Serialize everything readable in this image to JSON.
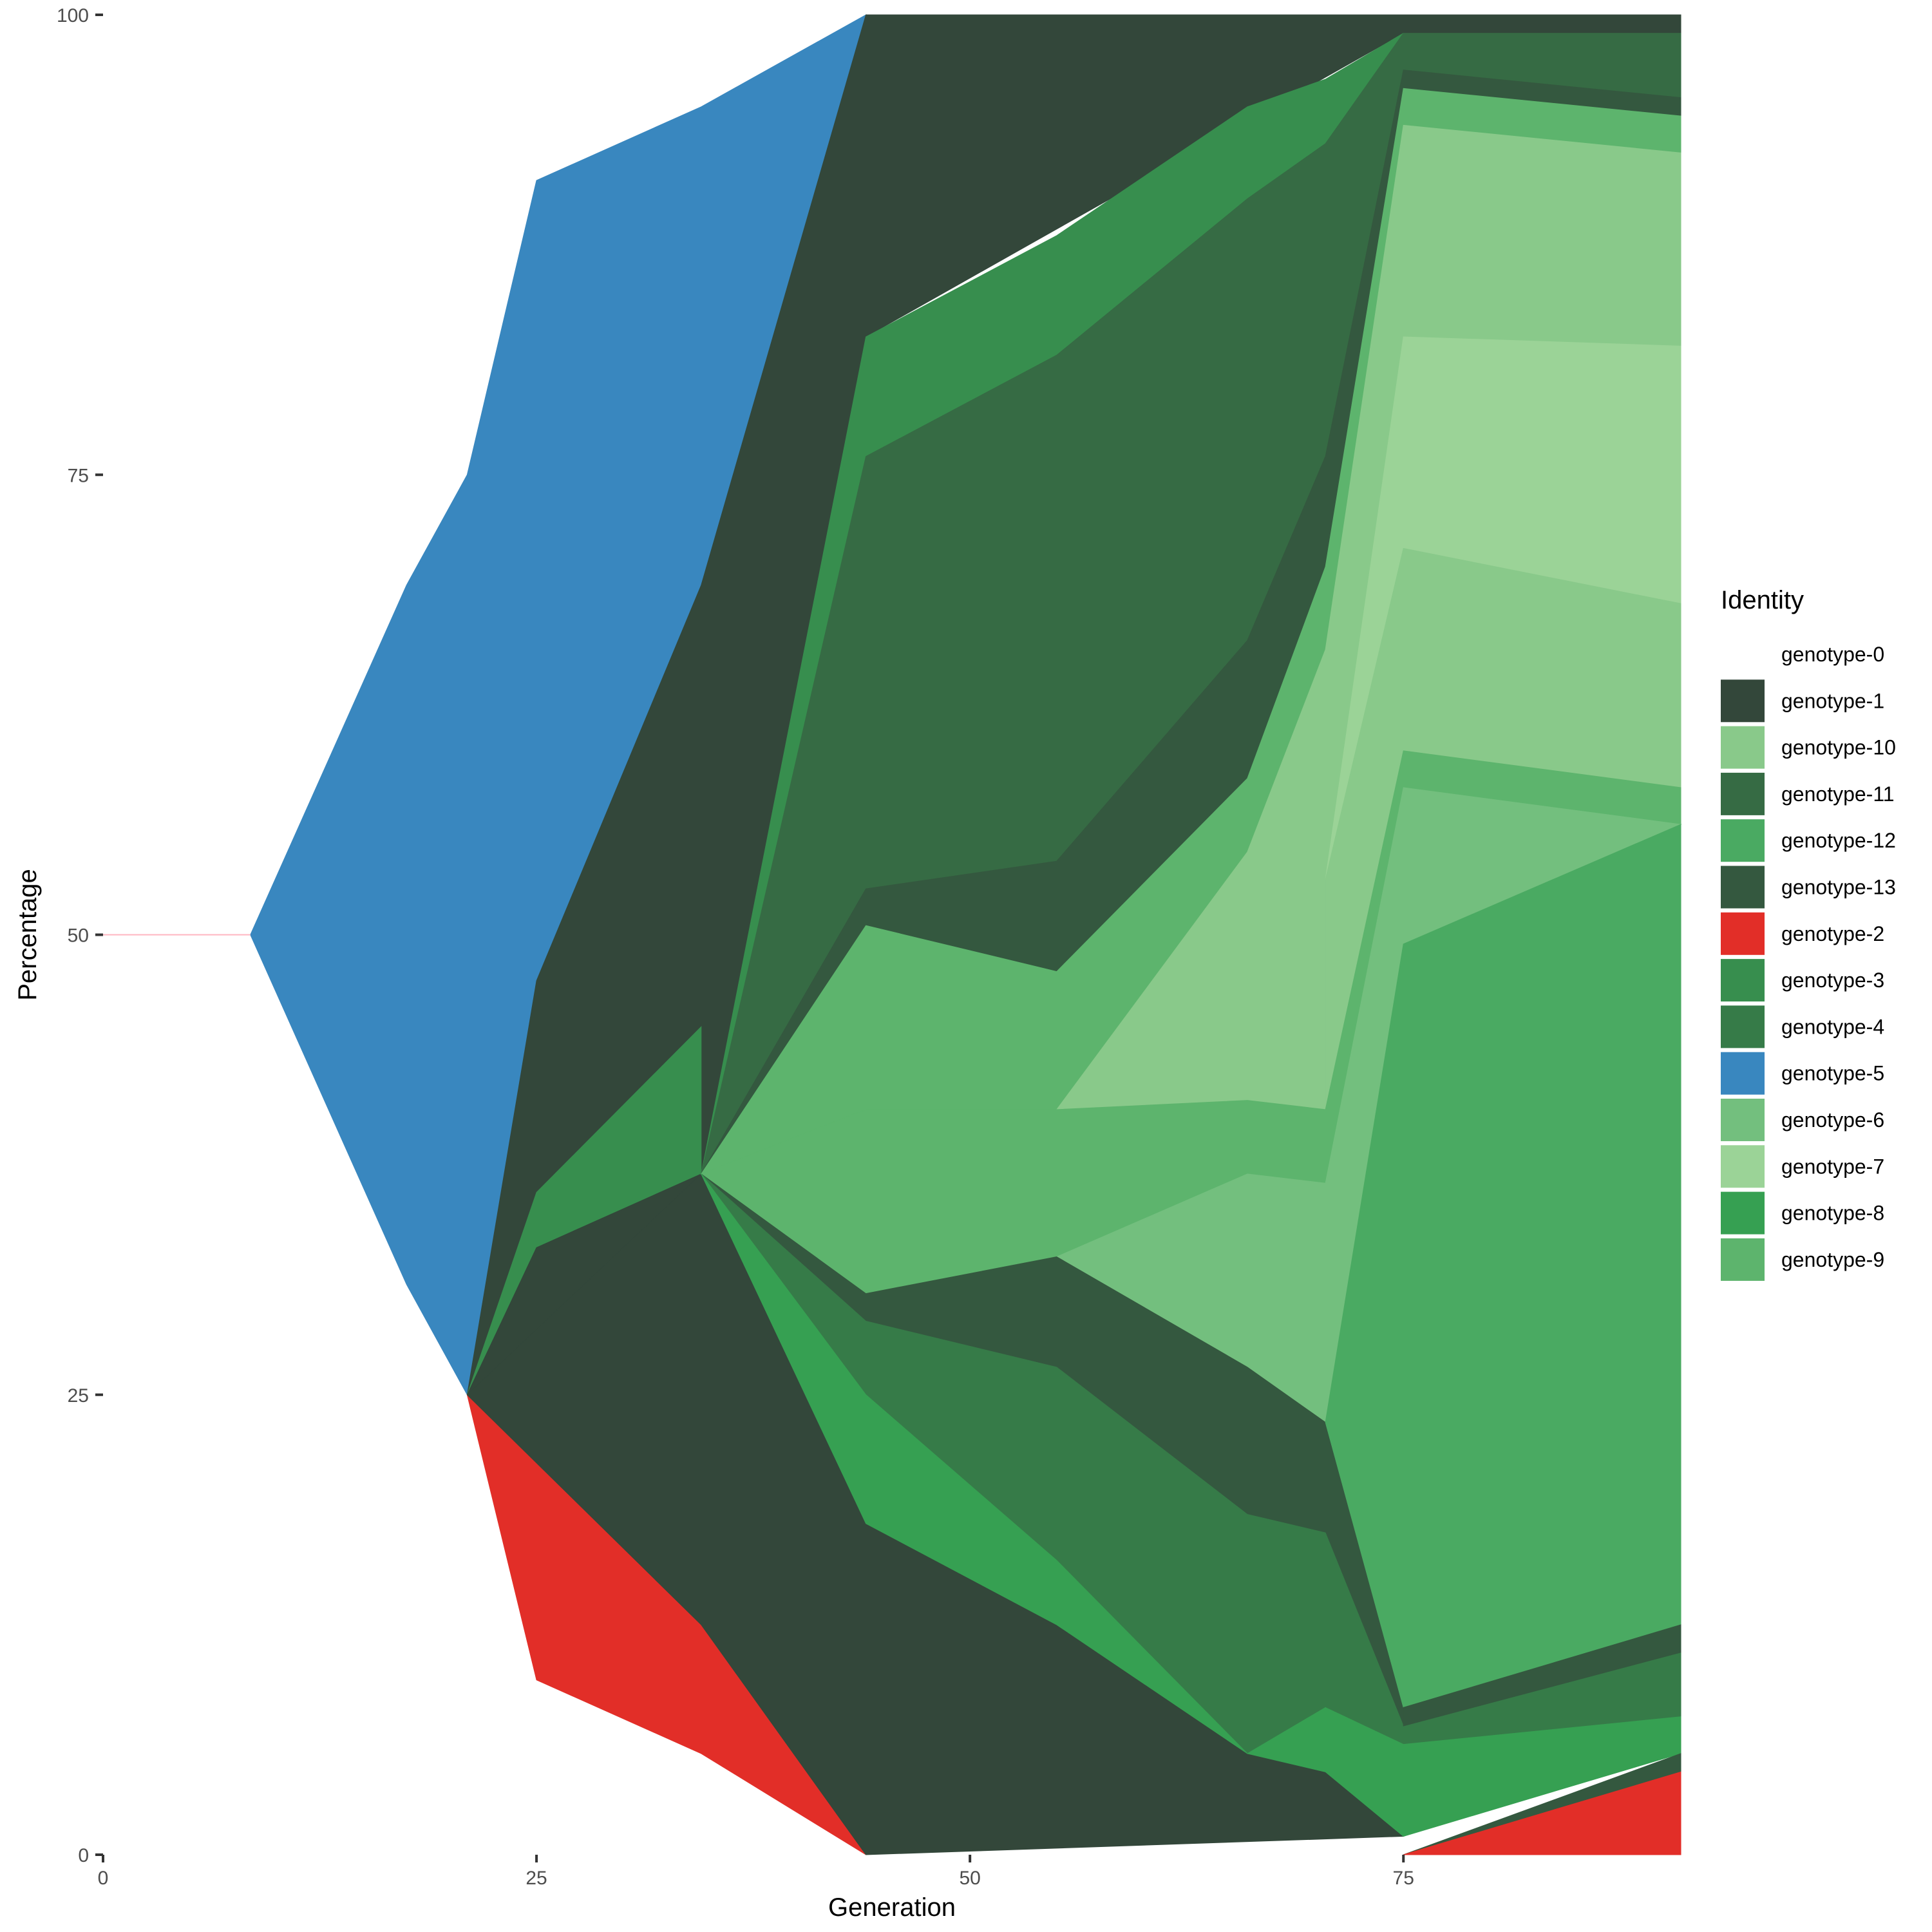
{
  "chart_data": {
    "type": "area",
    "xlabel": "Generation",
    "ylabel": "Percentage",
    "xlim": [
      0,
      91
    ],
    "ylim": [
      0,
      100
    ],
    "x_ticks": [
      0,
      25,
      50,
      75
    ],
    "y_ticks": [
      0,
      25,
      50,
      75,
      100
    ],
    "grid": false,
    "legend": {
      "title": "Identity",
      "position": "right",
      "entries": [
        {
          "name": "genotype-0",
          "color": "#ffffff"
        },
        {
          "name": "genotype-1",
          "color": "#33473a"
        },
        {
          "name": "genotype-10",
          "color": "#89c98a"
        },
        {
          "name": "genotype-11",
          "color": "#366b44"
        },
        {
          "name": "genotype-12",
          "color": "#4aaa62"
        },
        {
          "name": "genotype-13",
          "color": "#34583f"
        },
        {
          "name": "genotype-2",
          "color": "#e22e28"
        },
        {
          "name": "genotype-3",
          "color": "#378e4e"
        },
        {
          "name": "genotype-4",
          "color": "#367b48"
        },
        {
          "name": "genotype-5",
          "color": "#3987bf"
        },
        {
          "name": "genotype-6",
          "color": "#73bf7e"
        },
        {
          "name": "genotype-7",
          "color": "#9bd397"
        },
        {
          "name": "genotype-8",
          "color": "#36a052"
        },
        {
          "name": "genotype-9",
          "color": "#5db46d"
        }
      ]
    },
    "regions": [
      {
        "series": "genotype-5",
        "color": "#3987bf",
        "points": [
          [
            8.5,
            50
          ],
          [
            17.5,
            69
          ],
          [
            21,
            75
          ],
          [
            25,
            91
          ],
          [
            34.5,
            95
          ],
          [
            44,
            100
          ],
          [
            34.5,
            69
          ],
          [
            25,
            47.5
          ],
          [
            21,
            25
          ],
          [
            17.5,
            31
          ],
          [
            8.5,
            50
          ]
        ]
      },
      {
        "series": "genotype-2",
        "color": "#e22e28",
        "points": [
          [
            21,
            25
          ],
          [
            34.5,
            12.5
          ],
          [
            44,
            0
          ],
          [
            34.5,
            5.5
          ],
          [
            25,
            9.5
          ],
          [
            21,
            25
          ]
        ]
      },
      {
        "series": "genotype-1",
        "color": "#33473a",
        "points": [
          [
            21,
            25
          ],
          [
            25,
            47.5
          ],
          [
            34.5,
            69
          ],
          [
            44,
            100
          ],
          [
            91,
            100
          ],
          [
            91,
            99
          ],
          [
            75,
            99
          ],
          [
            44,
            82.5
          ],
          [
            34.5,
            37
          ],
          [
            44,
            18
          ],
          [
            55,
            12.5
          ],
          [
            66,
            5.5
          ],
          [
            70.5,
            4.5
          ],
          [
            75,
            1
          ],
          [
            44,
            0
          ],
          [
            34.5,
            12.5
          ],
          [
            21,
            25
          ]
        ]
      },
      {
        "series": "genotype-3",
        "color": "#378e4e",
        "points": [
          [
            21,
            25
          ],
          [
            25,
            36
          ],
          [
            34.5,
            45
          ],
          [
            34.5,
            37
          ],
          [
            25,
            33
          ],
          [
            21,
            25
          ]
        ]
      },
      {
        "series": "genotype-1",
        "color": "#33473a",
        "points": [
          [
            21,
            25
          ],
          [
            25,
            33
          ],
          [
            34.5,
            37
          ],
          [
            21,
            25
          ]
        ]
      },
      {
        "series": "genotype-3",
        "color": "#378e4e",
        "points": [
          [
            34.5,
            37
          ],
          [
            44,
            82.5
          ],
          [
            55,
            88
          ],
          [
            66,
            95
          ],
          [
            70.5,
            96.5
          ],
          [
            75,
            99
          ],
          [
            70.5,
            93
          ],
          [
            66,
            90
          ],
          [
            55,
            81.5
          ],
          [
            44,
            76
          ],
          [
            34.5,
            37
          ]
        ]
      },
      {
        "series": "genotype-11",
        "color": "#366b44",
        "points": [
          [
            34.5,
            37
          ],
          [
            44,
            76
          ],
          [
            55,
            81.5
          ],
          [
            66,
            90
          ],
          [
            70.5,
            93
          ],
          [
            75,
            99
          ],
          [
            91,
            99
          ],
          [
            91,
            95.5
          ],
          [
            75,
            97
          ],
          [
            70.5,
            76
          ],
          [
            66,
            66
          ],
          [
            55,
            54
          ],
          [
            44,
            52.5
          ],
          [
            34.5,
            37
          ]
        ]
      },
      {
        "series": "genotype-13",
        "color": "#34583f",
        "points": [
          [
            34.5,
            37
          ],
          [
            44,
            52.5
          ],
          [
            55,
            54
          ],
          [
            66,
            66
          ],
          [
            70.5,
            76
          ],
          [
            75,
            97
          ],
          [
            91,
            95.5
          ],
          [
            91,
            94.5
          ],
          [
            75,
            96
          ],
          [
            70.5,
            70
          ],
          [
            66,
            58.5
          ],
          [
            55,
            48
          ],
          [
            44,
            50.5
          ],
          [
            34.5,
            37
          ]
        ]
      },
      {
        "series": "genotype-9",
        "color": "#5db46d",
        "points": [
          [
            34.5,
            37
          ],
          [
            44,
            50.5
          ],
          [
            55,
            48
          ],
          [
            66,
            58.5
          ],
          [
            70.5,
            70
          ],
          [
            75,
            96
          ],
          [
            91,
            94.5
          ],
          [
            91,
            92.5
          ],
          [
            75,
            94
          ],
          [
            70.5,
            65.5
          ],
          [
            66,
            54.5
          ],
          [
            55,
            40.5
          ],
          [
            44,
            40.5
          ],
          [
            34.5,
            37
          ]
        ]
      },
      {
        "series": "genotype-10",
        "color": "#89c98a",
        "points": [
          [
            55,
            40.5
          ],
          [
            66,
            54.5
          ],
          [
            70.5,
            65.5
          ],
          [
            75,
            94
          ],
          [
            91,
            92.5
          ],
          [
            91,
            82
          ],
          [
            75,
            82.5
          ],
          [
            70.5,
            53
          ],
          [
            70.5,
            40.5
          ],
          [
            66,
            41
          ],
          [
            55,
            40.5
          ]
        ]
      },
      {
        "series": "genotype-7",
        "color": "#9bd397",
        "points": [
          [
            70.5,
            53
          ],
          [
            75,
            82.5
          ],
          [
            91,
            82
          ],
          [
            91,
            68
          ],
          [
            75,
            71
          ],
          [
            70.5,
            53
          ]
        ]
      },
      {
        "series": "genotype-10",
        "color": "#89c98a",
        "points": [
          [
            70.5,
            53
          ],
          [
            75,
            71
          ],
          [
            91,
            68
          ],
          [
            91,
            58
          ],
          [
            75,
            60
          ],
          [
            70.5,
            40.5
          ],
          [
            70.5,
            53
          ]
        ]
      },
      {
        "series": "genotype-9",
        "color": "#5db46d",
        "points": [
          [
            34.5,
            37
          ],
          [
            44,
            40.5
          ],
          [
            55,
            40.5
          ],
          [
            66,
            41
          ],
          [
            70.5,
            40.5
          ],
          [
            75,
            60
          ],
          [
            91,
            58
          ],
          [
            91,
            56
          ],
          [
            75,
            58
          ],
          [
            70.5,
            36.5
          ],
          [
            66,
            37
          ],
          [
            55,
            32.5
          ],
          [
            44,
            30.5
          ],
          [
            34.5,
            37
          ]
        ]
      },
      {
        "series": "genotype-6",
        "color": "#73bf7e",
        "points": [
          [
            55,
            32.5
          ],
          [
            66,
            37
          ],
          [
            70.5,
            36.5
          ],
          [
            75,
            58
          ],
          [
            91,
            56
          ],
          [
            91,
            56
          ],
          [
            75,
            49.5
          ],
          [
            70.5,
            23.5
          ],
          [
            66,
            26.5
          ],
          [
            55,
            32.5
          ]
        ]
      },
      {
        "series": "genotype-13",
        "color": "#34583f",
        "points": [
          [
            34.5,
            37
          ],
          [
            44,
            30.5
          ],
          [
            55,
            32.5
          ],
          [
            66,
            26.5
          ],
          [
            70.5,
            23.5
          ],
          [
            75,
            8
          ],
          [
            75,
            7
          ],
          [
            70.5,
            17.5
          ],
          [
            66,
            18.5
          ],
          [
            55,
            26.5
          ],
          [
            44,
            29
          ],
          [
            34.5,
            37
          ]
        ]
      },
      {
        "series": "genotype-12",
        "color": "#4aaa62",
        "points": [
          [
            70.5,
            23.5
          ],
          [
            75,
            49.5
          ],
          [
            91,
            56
          ],
          [
            91,
            12.5
          ],
          [
            75,
            8
          ],
          [
            70.5,
            23.5
          ]
        ]
      },
      {
        "series": "genotype-4",
        "color": "#367b48",
        "points": [
          [
            34.5,
            37
          ],
          [
            44,
            29
          ],
          [
            55,
            26.5
          ],
          [
            66,
            18.5
          ],
          [
            70.5,
            17.5
          ],
          [
            75,
            7
          ],
          [
            91,
            11
          ],
          [
            91,
            7.5
          ],
          [
            75,
            6
          ],
          [
            70.5,
            8
          ],
          [
            66,
            5.5
          ],
          [
            55,
            16
          ],
          [
            44,
            25
          ],
          [
            34.5,
            37
          ]
        ]
      },
      {
        "series": "genotype-13",
        "color": "#34583f",
        "points": [
          [
            75,
            8
          ],
          [
            91,
            12.5
          ],
          [
            91,
            11
          ],
          [
            75,
            7
          ],
          [
            75,
            8
          ]
        ]
      },
      {
        "series": "genotype-8",
        "color": "#36a052",
        "points": [
          [
            34.5,
            37
          ],
          [
            44,
            25
          ],
          [
            55,
            16
          ],
          [
            66,
            5.5
          ],
          [
            70.5,
            8
          ],
          [
            75,
            6
          ],
          [
            91,
            7.5
          ],
          [
            91,
            5.5
          ],
          [
            75,
            1
          ],
          [
            70.5,
            4.5
          ],
          [
            66,
            5.5
          ],
          [
            55,
            12.5
          ],
          [
            44,
            18
          ],
          [
            34.5,
            37
          ]
        ]
      },
      {
        "series": "genotype-13",
        "color": "#34583f",
        "points": [
          [
            75,
            0
          ],
          [
            91,
            5.5
          ],
          [
            91,
            4.5
          ],
          [
            75,
            0
          ]
        ]
      },
      {
        "series": "genotype-2",
        "color": "#e22e28",
        "points": [
          [
            75,
            0
          ],
          [
            91,
            4.5
          ],
          [
            91,
            0
          ],
          [
            75,
            0
          ]
        ]
      }
    ],
    "baseline_segment": {
      "series": "genotype-0",
      "color": "#ffb6c1",
      "points": [
        [
          0,
          50
        ],
        [
          8.5,
          50
        ]
      ]
    }
  }
}
